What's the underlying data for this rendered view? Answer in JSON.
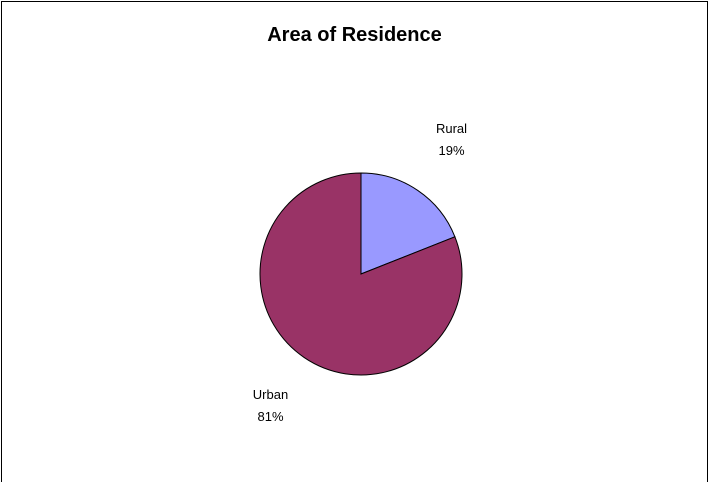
{
  "chart_data": {
    "type": "pie",
    "title": "Area of Residence",
    "categories": [
      "Rural",
      "Urban"
    ],
    "values": [
      19,
      81
    ],
    "labels": [
      "19%",
      "81%"
    ],
    "colors": [
      "#9999ff",
      "#993366"
    ],
    "start_angle_deg": 0,
    "direction": "clockwise",
    "legend": "none"
  }
}
